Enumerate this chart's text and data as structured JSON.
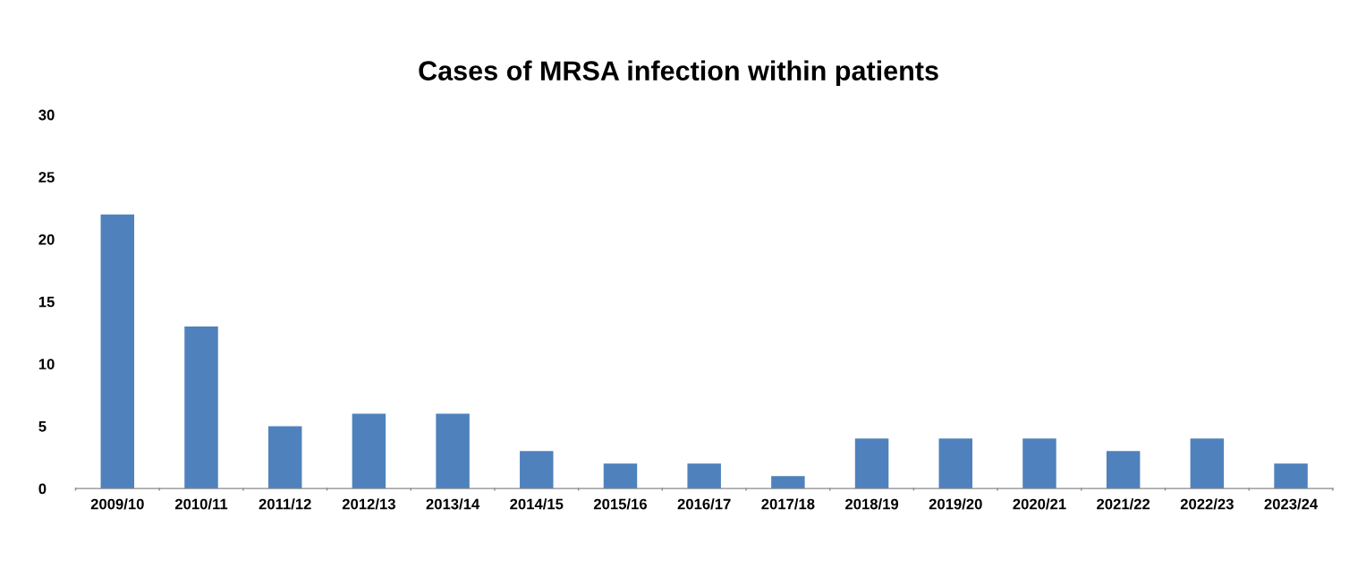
{
  "chart_data": {
    "type": "bar",
    "title": "Cases of MRSA infection within patients",
    "categories": [
      "2009/10",
      "2010/11",
      "2011/12",
      "2012/13",
      "2013/14",
      "2014/15",
      "2015/16",
      "2016/17",
      "2017/18",
      "2018/19",
      "2019/20",
      "2020/21",
      "2021/22",
      "2022/23",
      "2023/24"
    ],
    "values": [
      22,
      13,
      5,
      6,
      6,
      3,
      2,
      2,
      1,
      4,
      4,
      4,
      3,
      4,
      2
    ],
    "color": "#4f81bd",
    "ylim": [
      0,
      30
    ],
    "yticks": [
      0,
      5,
      10,
      15,
      20,
      25,
      30
    ],
    "grid": false,
    "legend": false
  }
}
